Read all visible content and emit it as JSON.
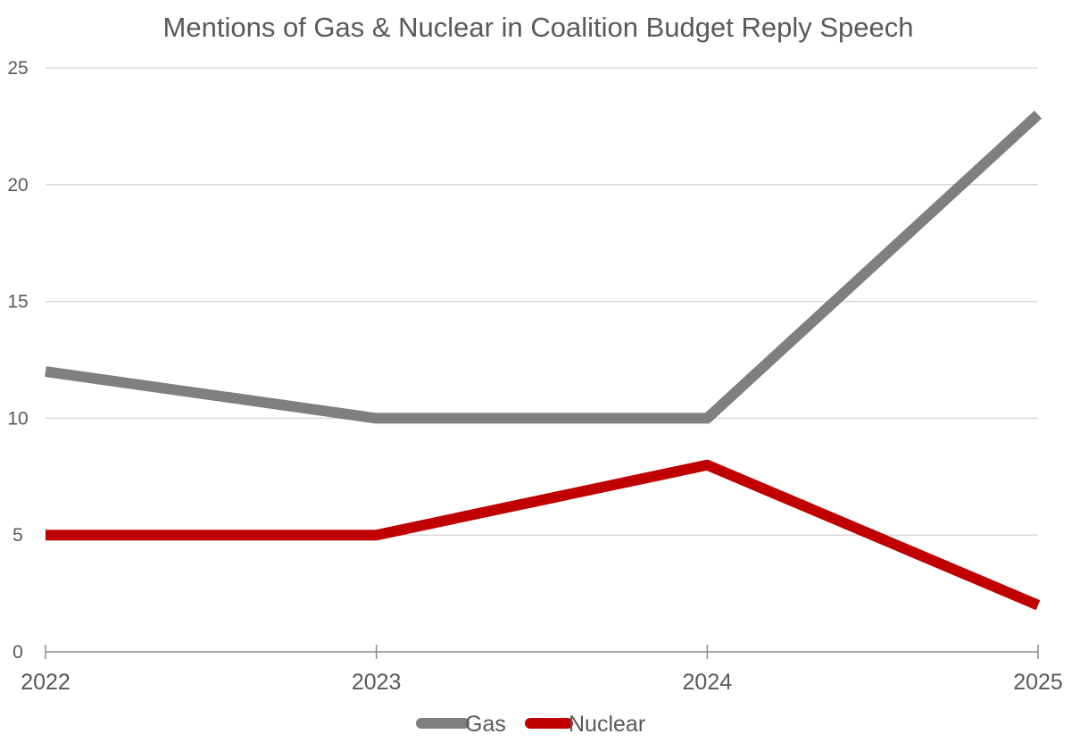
{
  "chart_data": {
    "type": "line",
    "title": "Mentions of Gas & Nuclear in Coalition Budget Reply Speech",
    "xlabel": "",
    "ylabel": "",
    "categories": [
      "2022",
      "2023",
      "2024",
      "2025"
    ],
    "ylim": [
      0,
      25
    ],
    "yticks": [
      0,
      5,
      10,
      15,
      20,
      25
    ],
    "grid": true,
    "legend_position": "bottom",
    "series": [
      {
        "name": "Gas",
        "values": [
          12,
          10,
          10,
          23
        ],
        "color": "#7f7f7f"
      },
      {
        "name": "Nuclear",
        "values": [
          5,
          5,
          8,
          2
        ],
        "color": "#c00000"
      }
    ]
  },
  "colors": {
    "text": "#595959",
    "gridline": "#d9d9d9",
    "axis": "#8c8c8c"
  }
}
